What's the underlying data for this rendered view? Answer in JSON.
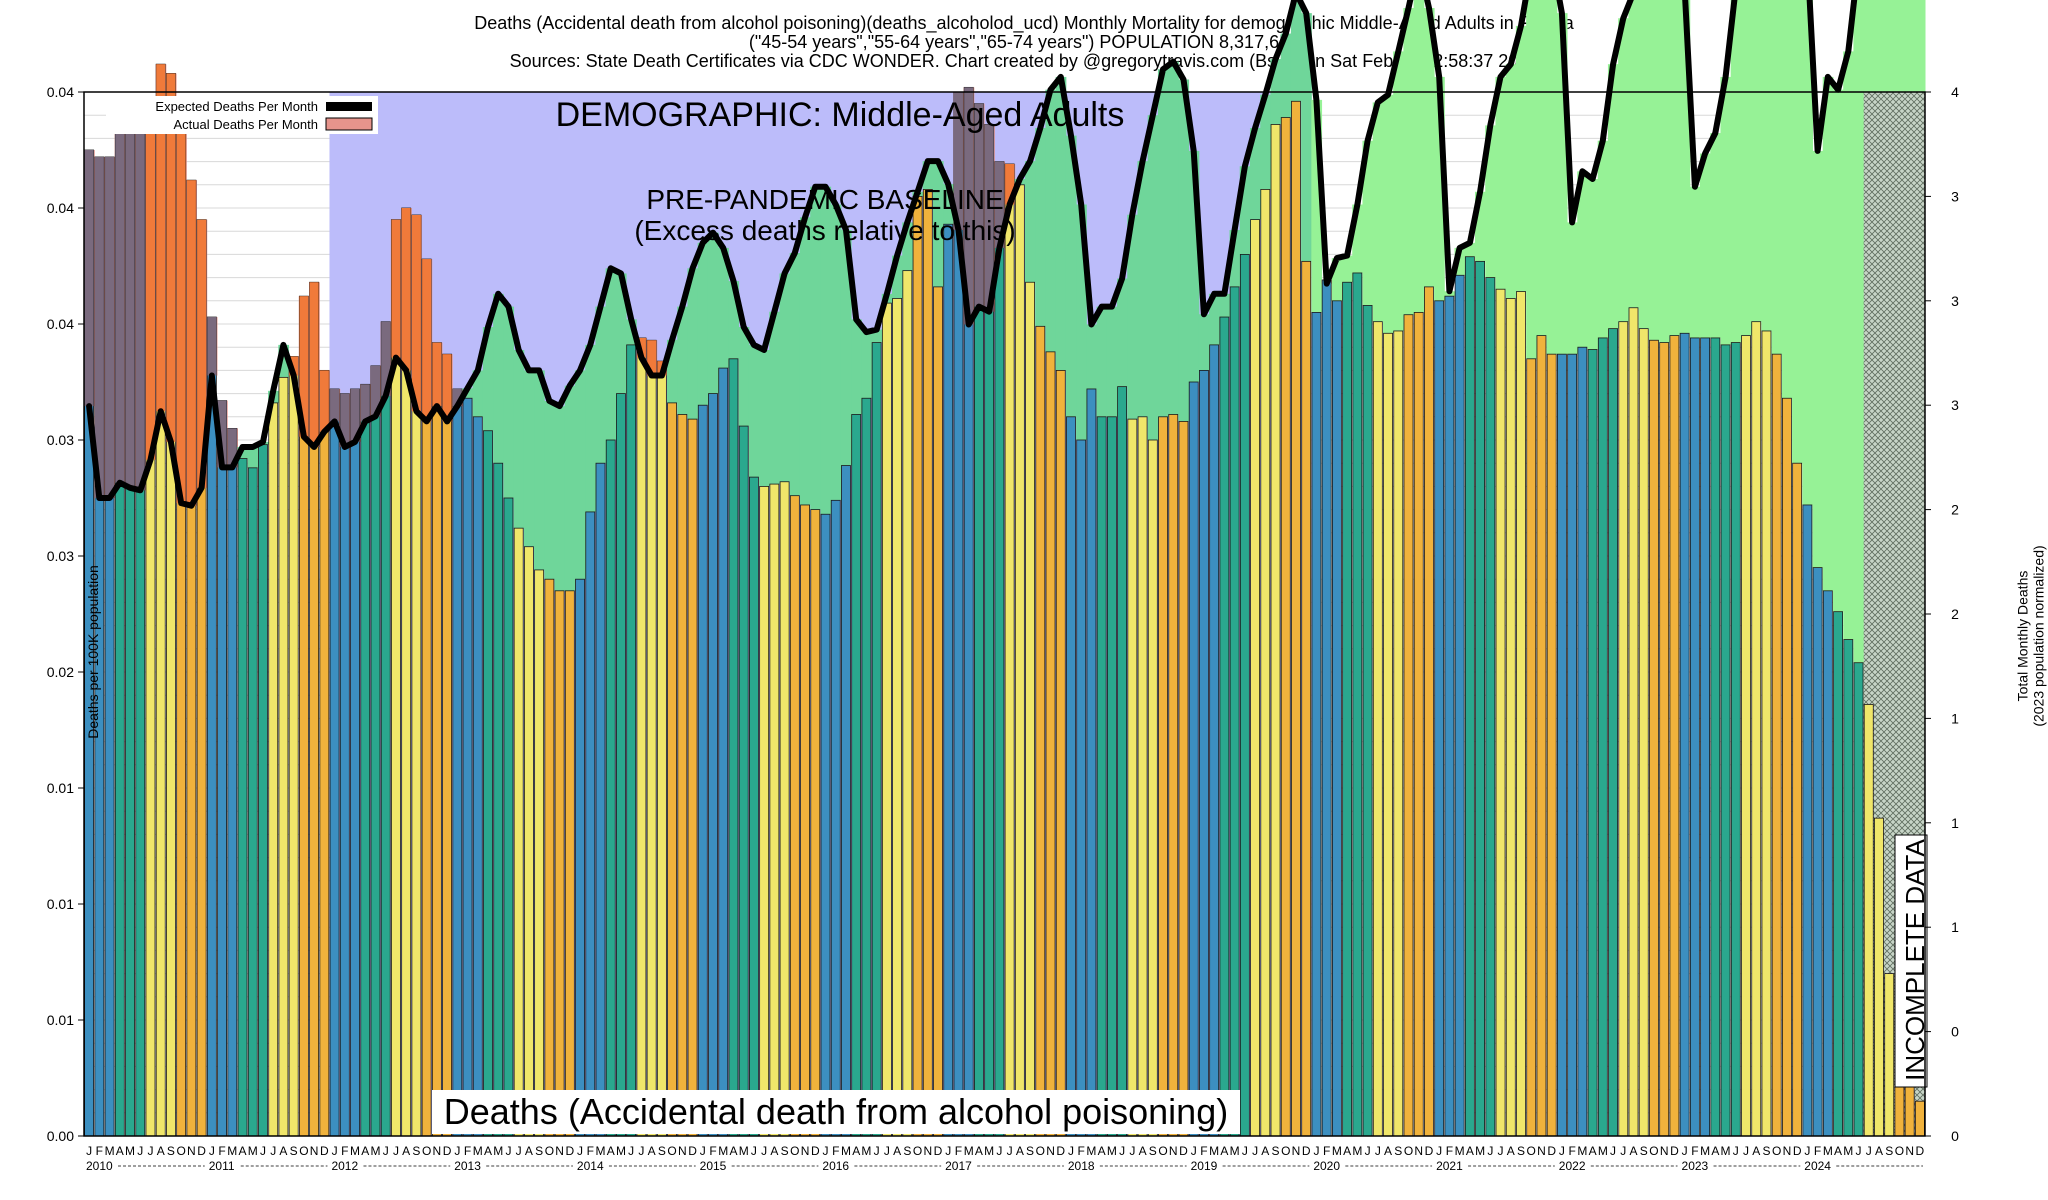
{
  "header": {
    "line1": "Deaths (Accidental death from alcohol poisoning)(deaths_alcoholod_ucd) Monthly Mortality for demographic Middle-Aged Adults in Florida",
    "line2": "(\"45-54 years\",\"55-64 years\",\"65-74 years\") POPULATION 8,317,650",
    "line3": "Sources: State Death Certificates via CDC WONDER.               Chart created by @gregorytravis.com (Bsky) on Sat Feb 01 22:58:37 2025"
  },
  "chart_data": {
    "type": "bar",
    "title": "Deaths (Accidental death from alcohol poisoning)(deaths_alcoholod_ucd) Monthly Mortality for demographic Middle-Aged Adults in Florida",
    "ylabel": "Deaths per 100K population",
    "y2label": "Total Monthly Deaths",
    "y2label_sub": "(2023 population normalized)",
    "ylim": [
      0,
      0.045
    ],
    "y2lim": [
      0,
      4
    ],
    "y_ticks": [
      {
        "v": 0.0,
        "label": "0.00"
      },
      {
        "v": 0.005,
        "label": "0.01"
      },
      {
        "v": 0.01,
        "label": "0.01"
      },
      {
        "v": 0.015,
        "label": "0.01"
      },
      {
        "v": 0.02,
        "label": "0.02"
      },
      {
        "v": 0.025,
        "label": "0.03"
      },
      {
        "v": 0.03,
        "label": "0.03"
      },
      {
        "v": 0.035,
        "label": "0.04"
      },
      {
        "v": 0.04,
        "label": "0.04"
      },
      {
        "v": 0.045,
        "label": "0.04"
      }
    ],
    "y2_ticks": [
      {
        "v": 0.0,
        "label": "0"
      },
      {
        "v": 0.4,
        "label": "0"
      },
      {
        "v": 0.8,
        "label": "1"
      },
      {
        "v": 1.2,
        "label": "1"
      },
      {
        "v": 1.6,
        "label": "1"
      },
      {
        "v": 2.0,
        "label": "2"
      },
      {
        "v": 2.4,
        "label": "2"
      },
      {
        "v": 2.8,
        "label": "3"
      },
      {
        "v": 3.2,
        "label": "3"
      },
      {
        "v": 3.6,
        "label": "3"
      },
      {
        "v": 4.0,
        "label": "4"
      }
    ],
    "month_letters": [
      "J",
      "F",
      "M",
      "A",
      "M",
      "J",
      "J",
      "A",
      "S",
      "O",
      "N",
      "D"
    ],
    "years": [
      "2010",
      "2011",
      "2012",
      "2013",
      "2014",
      "2015",
      "2016",
      "2017",
      "2018",
      "2019",
      "2020",
      "2021",
      "2022",
      "2023",
      "2024"
    ],
    "season_colors": [
      "#3c8fc0",
      "#3c8fc0",
      "#3c8fc0",
      "#2aa88e",
      "#2aa88e",
      "#2aa88e",
      "#f0e66a",
      "#f0e66a",
      "#f0e66a",
      "#f0b23c",
      "#f0b23c",
      "#f0b23c"
    ],
    "actual": [
      0.0425,
      0.0422,
      0.0422,
      0.0436,
      0.0444,
      0.0442,
      0.0433,
      0.0462,
      0.0458,
      0.0438,
      0.0412,
      0.0395,
      0.0353,
      0.0317,
      0.0305,
      0.0292,
      0.0288,
      0.0298,
      0.0316,
      0.0327,
      0.0336,
      0.0362,
      0.0368,
      0.033,
      0.0322,
      0.032,
      0.0322,
      0.0324,
      0.0332,
      0.0351,
      0.0395,
      0.04,
      0.0397,
      0.0378,
      0.0342,
      0.0337,
      0.0322,
      0.0318,
      0.031,
      0.0304,
      0.029,
      0.0275,
      0.0262,
      0.0254,
      0.0244,
      0.024,
      0.0235,
      0.0235,
      0.024,
      0.0269,
      0.029,
      0.03,
      0.032,
      0.0341,
      0.0344,
      0.0343,
      0.0334,
      0.0316,
      0.0311,
      0.0309,
      0.0315,
      0.032,
      0.0331,
      0.0335,
      0.0306,
      0.0284,
      0.028,
      0.0281,
      0.0282,
      0.0276,
      0.0272,
      0.027,
      0.0268,
      0.0274,
      0.0289,
      0.0311,
      0.0318,
      0.0342,
      0.0359,
      0.0361,
      0.0373,
      0.0405,
      0.0408,
      0.0366,
      0.0393,
      0.045,
      0.0452,
      0.0445,
      0.0436,
      0.042,
      0.0419,
      0.041,
      0.0368,
      0.0349,
      0.0338,
      0.033,
      0.031,
      0.03,
      0.0322,
      0.031,
      0.031,
      0.0323,
      0.0309,
      0.031,
      0.03,
      0.031,
      0.0311,
      0.0308,
      0.0325,
      0.033,
      0.0341,
      0.0353,
      0.0366,
      0.038,
      0.0395,
      0.0408,
      0.0436,
      0.0439,
      0.0446,
      0.0377,
      0.0355,
      0.0369,
      0.036,
      0.0368,
      0.0372,
      0.0358,
      0.0351,
      0.0346,
      0.0347,
      0.0354,
      0.0355,
      0.0366,
      0.036,
      0.0362,
      0.0371,
      0.0379,
      0.0377,
      0.037,
      0.0365,
      0.0361,
      0.0364,
      0.0335,
      0.0345,
      0.0337,
      0.0337,
      0.0337,
      0.034,
      0.0339,
      0.0344,
      0.0348,
      0.0351,
      0.0357,
      0.0348,
      0.0343,
      0.0342,
      0.0345,
      0.0346,
      0.0344,
      0.0344,
      0.0344,
      0.0341,
      0.0342,
      0.0345,
      0.0351,
      0.0347,
      0.0337,
      0.0318,
      0.029,
      0.0272,
      0.0245,
      0.0235,
      0.0226,
      0.0214,
      0.0204,
      0.0186,
      0.0137,
      0.007,
      0.0038,
      0.003,
      0.0015
    ],
    "expected": [
      2.86,
      2.5,
      2.5,
      2.56,
      2.54,
      2.53,
      2.65,
      2.84,
      2.72,
      2.48,
      2.47,
      2.54,
      2.98,
      2.62,
      2.62,
      2.7,
      2.7,
      2.72,
      2.92,
      3.1,
      2.98,
      2.74,
      2.7,
      2.76,
      2.8,
      2.7,
      2.72,
      2.8,
      2.82,
      2.9,
      3.05,
      3.0,
      2.84,
      2.8,
      2.86,
      2.8,
      2.86,
      2.93,
      3.0,
      3.17,
      3.3,
      3.25,
      3.08,
      3.0,
      3.0,
      2.88,
      2.86,
      2.94,
      3.0,
      3.1,
      3.25,
      3.4,
      3.38,
      3.2,
      3.05,
      2.98,
      2.98,
      3.12,
      3.25,
      3.4,
      3.5,
      3.54,
      3.48,
      3.35,
      3.17,
      3.1,
      3.08,
      3.23,
      3.38,
      3.46,
      3.6,
      3.72,
      3.72,
      3.65,
      3.55,
      3.2,
      3.15,
      3.16,
      3.3,
      3.45,
      3.58,
      3.7,
      3.82,
      3.82,
      3.73,
      3.55,
      3.18,
      3.25,
      3.23,
      3.48,
      3.65,
      3.75,
      3.82,
      3.95,
      4.1,
      4.15,
      3.92,
      3.65,
      3.18,
      3.25,
      3.25,
      3.36,
      3.61,
      3.82,
      4.0,
      4.18,
      4.21,
      4.14,
      3.86,
      3.22,
      3.3,
      3.3,
      3.55,
      3.8,
      3.95,
      4.08,
      4.22,
      4.32,
      4.48,
      4.4,
      4.06,
      3.34,
      3.44,
      3.45,
      3.65,
      3.9,
      4.05,
      4.08,
      4.25,
      4.42,
      4.6,
      4.42,
      4.15,
      3.31,
      3.48,
      3.5,
      3.7,
      3.96,
      4.15,
      4.2,
      4.35,
      4.58,
      4.7,
      4.62,
      4.4,
      3.58,
      3.78,
      3.75,
      3.9,
      4.2,
      4.38,
      4.48,
      4.6,
      4.82,
      4.95,
      4.85,
      4.5,
      3.72,
      3.85,
      3.93,
      4.15,
      4.5,
      4.68,
      4.68,
      4.88,
      5.05,
      5.14,
      5.0,
      4.62,
      3.86,
      4.15,
      4.1,
      4.25,
      4.6,
      4.75,
      4.76,
      5.0,
      5.25,
      5.42,
      5.28
    ]
  },
  "labels": {
    "legend_expected": "Expected Deaths Per Month",
    "legend_actual": "Actual Deaths Per Month",
    "demographic": "DEMOGRAPHIC: Middle-Aged Adults",
    "baseline_line1": "PRE-PANDEMIC BASELINE",
    "baseline_line2": "(Excess deaths relative to this)",
    "incomplete": "INCOMPLETE DATA",
    "cause": "Deaths (Accidental death from alcohol poisoning)"
  },
  "colors": {
    "baseline": "#bcbcfa",
    "excess": "#e6948c",
    "deficit": "#96f296",
    "overlap": "#7a6a7e",
    "line": "#000000"
  }
}
